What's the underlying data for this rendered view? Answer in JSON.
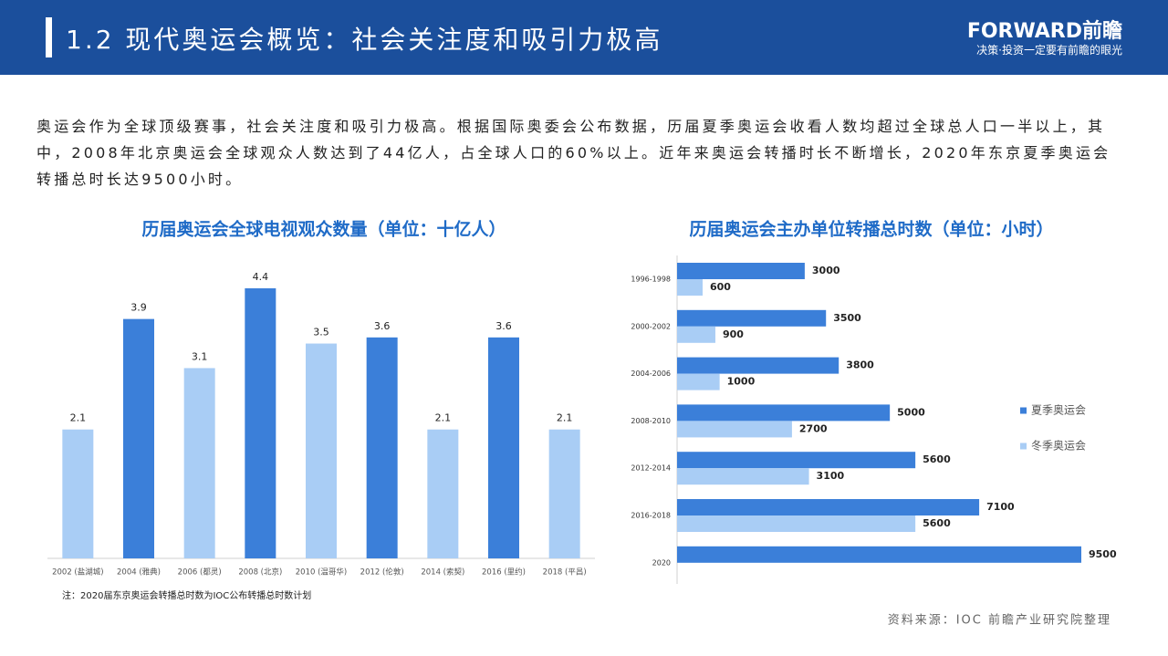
{
  "header": {
    "title": "1.2 现代奥运会概览：社会关注度和吸引力极高",
    "logo": "FORWARD前瞻",
    "slogan": "决策·投资一定要有前瞻的眼光"
  },
  "body": "奥运会作为全球顶级赛事，社会关注度和吸引力极高。根据国际奥委会公布数据，历届夏季奥运会收看人数均超过全球总人口一半以上，其中，2008年北京奥运会全球观众人数达到了44亿人，占全球人口的60%以上。近年来奥运会转播时长不断增长，2020年东京夏季奥运会转播总时长达9500小时。",
  "note": "注：2020届东京奥运会转播总时数为IOC公布转播总时数计划",
  "source": "资料来源：IOC 前瞻产业研究院整理",
  "chart_data": [
    {
      "type": "bar",
      "title": "历届奥运会全球电视观众数量（单位：十亿人）",
      "categories": [
        "2002 (盐湖城)",
        "2004 (雅典)",
        "2006 (都灵)",
        "2008 (北京)",
        "2010 (温哥华)",
        "2012 (伦敦)",
        "2014 (索契)",
        "2016 (里约)",
        "2018 (平昌)"
      ],
      "values": [
        2.1,
        3.9,
        3.1,
        4.4,
        3.5,
        3.6,
        2.1,
        3.6,
        2.1
      ],
      "colors": [
        "#a9cdf5",
        "#3b7fd9",
        "#a9cdf5",
        "#3b7fd9",
        "#a9cdf5",
        "#3b7fd9",
        "#a9cdf5",
        "#3b7fd9",
        "#a9cdf5"
      ]
    },
    {
      "type": "hbar",
      "title": "历届奥运会主办单位转播总时数（单位：小时）",
      "categories": [
        "1996-1998",
        "2000-2002",
        "2004-2006",
        "2008-2010",
        "2012-2014",
        "2016-2018",
        "2020"
      ],
      "series": [
        {
          "name": "夏季奥运会",
          "color": "#3b7fd9",
          "values": [
            3000,
            3500,
            3800,
            5000,
            5600,
            7100,
            9500
          ]
        },
        {
          "name": "冬季奥运会",
          "color": "#a9cdf5",
          "values": [
            600,
            900,
            1000,
            2700,
            3100,
            5600,
            null
          ]
        }
      ],
      "legend": "right"
    }
  ]
}
